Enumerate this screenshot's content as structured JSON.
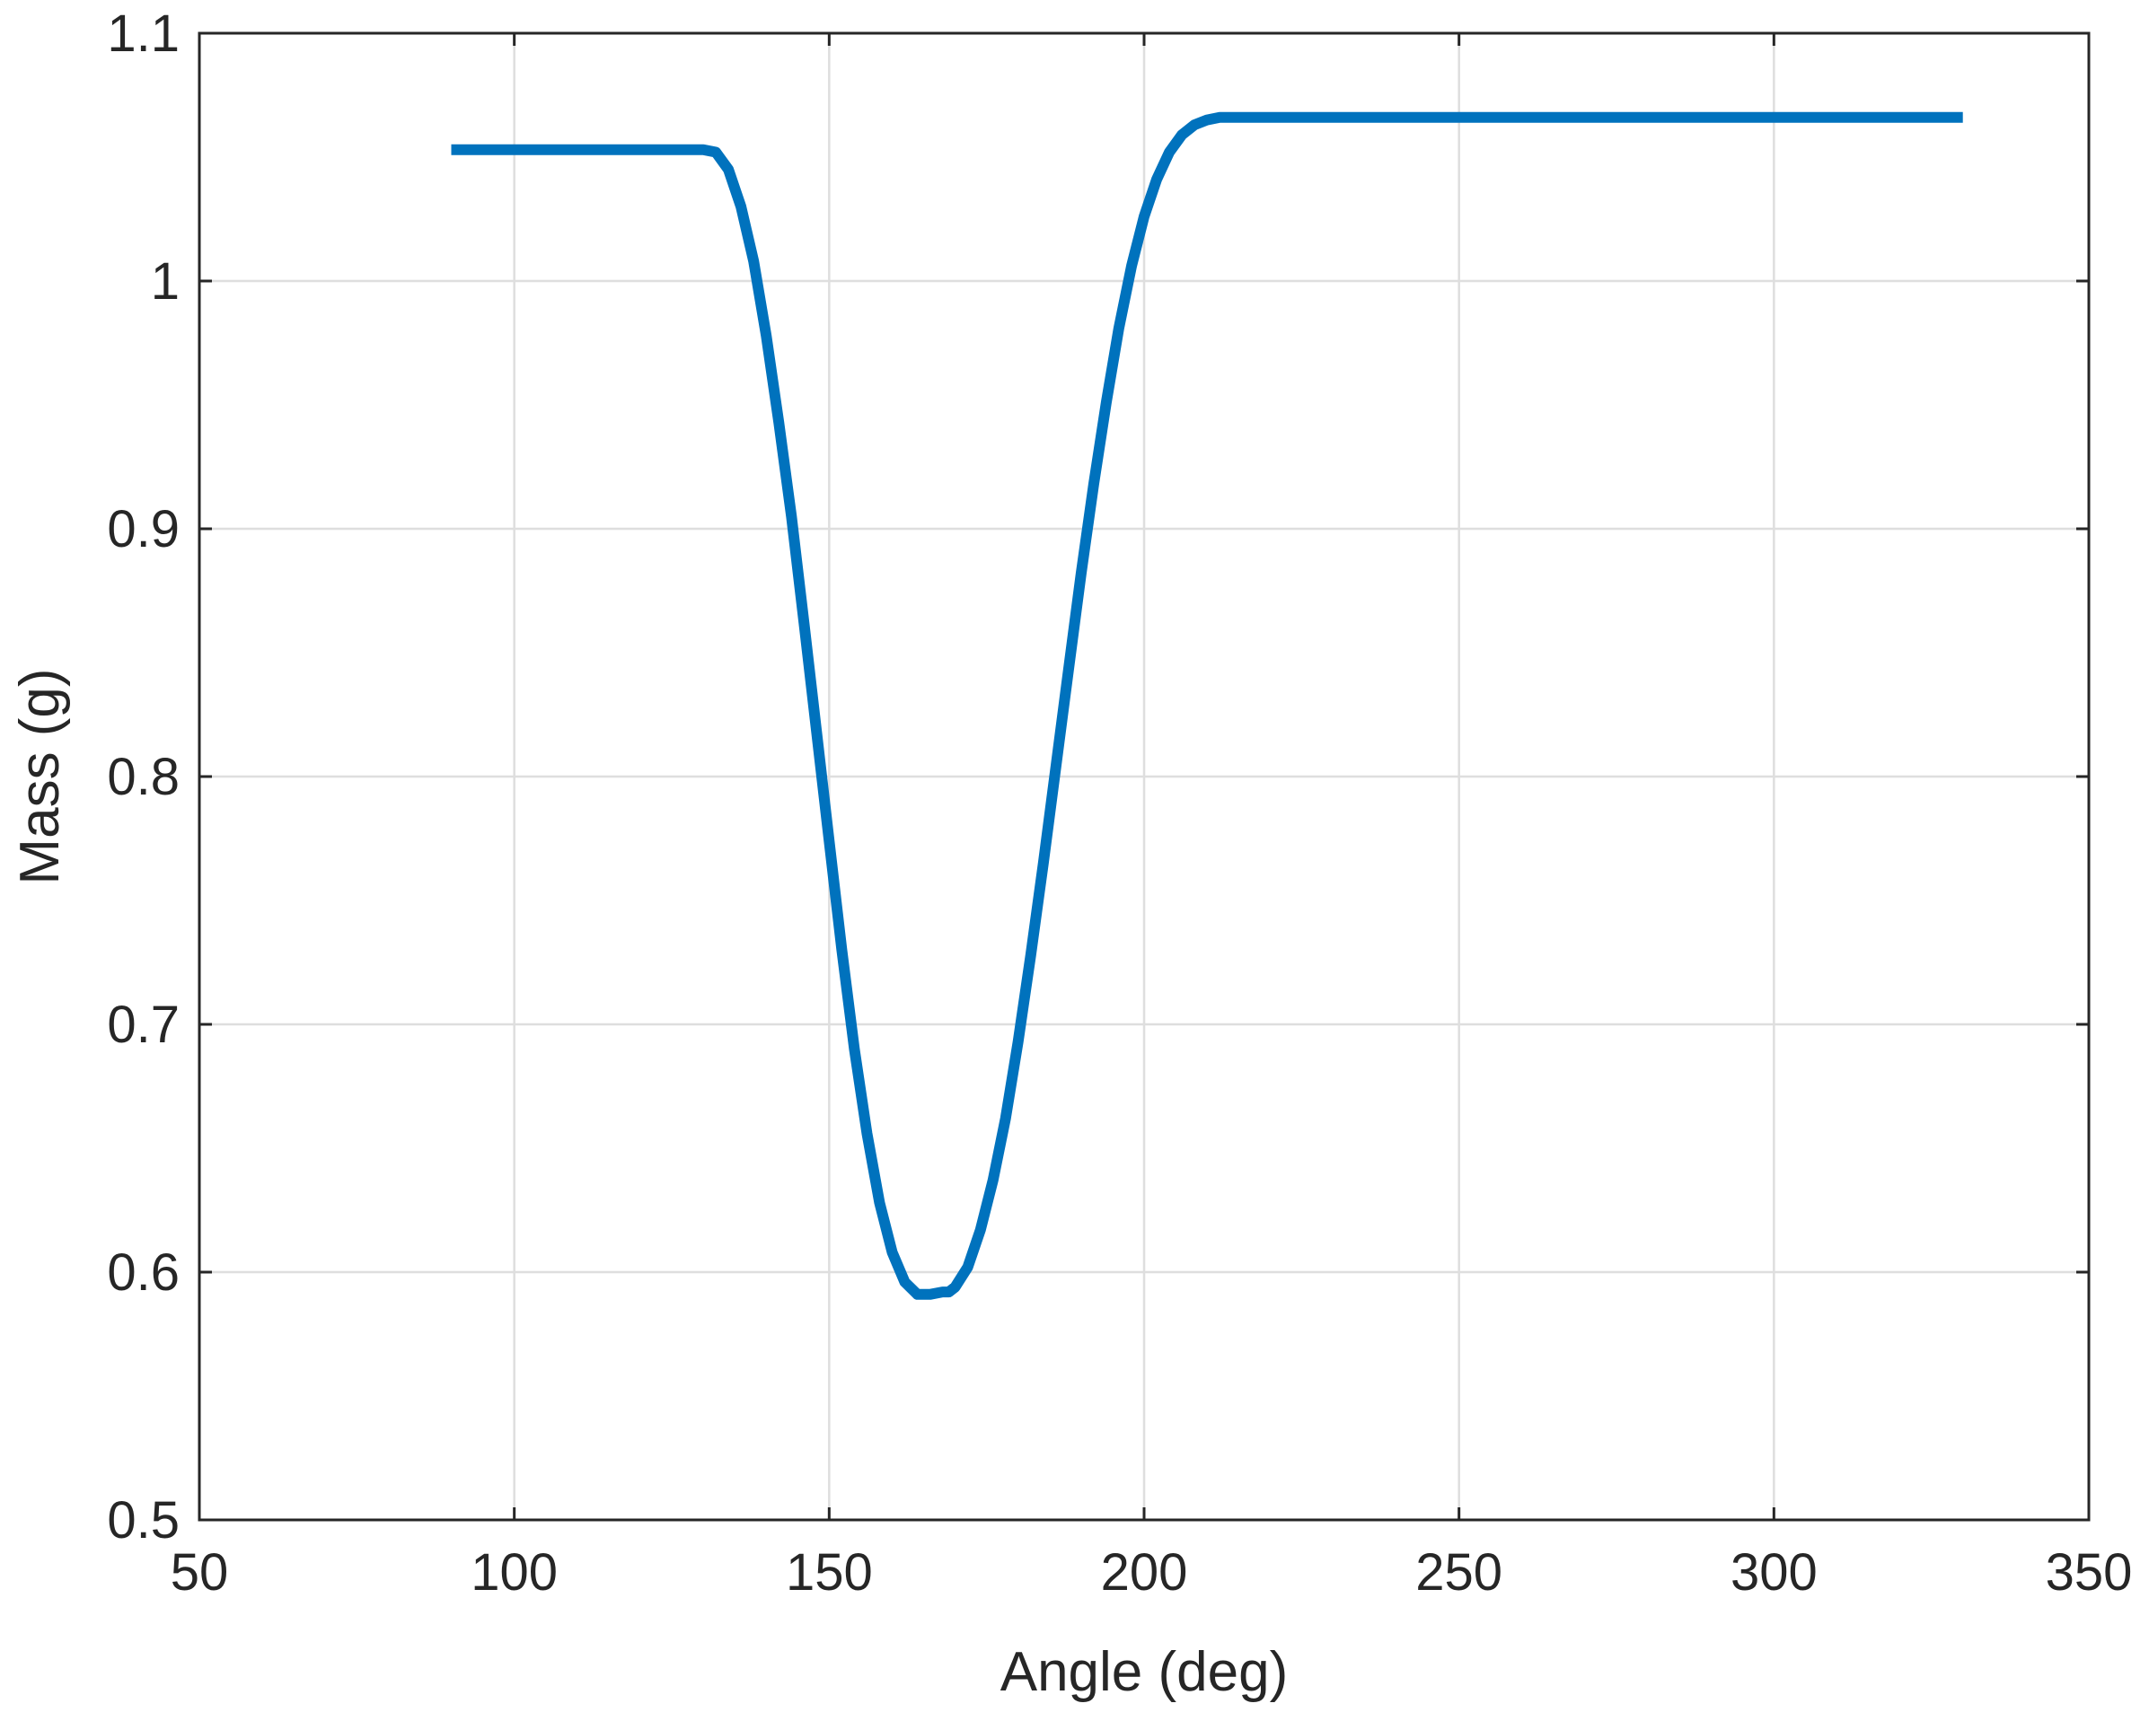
{
  "chart_data": {
    "type": "line",
    "title": "",
    "xlabel": "Angle (deg)",
    "ylabel": "Mass (g)",
    "xlim": [
      50,
      350
    ],
    "ylim": [
      0.5,
      1.1
    ],
    "xticks": [
      50,
      100,
      150,
      200,
      250,
      300,
      350
    ],
    "yticks": [
      0.5,
      0.6,
      0.7,
      0.8,
      0.9,
      1.0,
      1.1
    ],
    "xtick_labels": [
      "50",
      "100",
      "150",
      "200",
      "250",
      "300",
      "350"
    ],
    "ytick_labels": [
      "0.5",
      "0.6",
      "0.7",
      "0.8",
      "0.9",
      "1",
      "1.1"
    ],
    "grid": true,
    "series": [
      {
        "color": "#0072bd",
        "x": [
          90,
          100,
          110,
          120,
          130,
          132,
          134,
          136,
          138,
          140,
          142,
          144,
          146,
          148,
          150,
          152,
          154,
          156,
          158,
          160,
          162,
          164,
          166,
          168,
          169,
          170,
          172,
          174,
          176,
          178,
          180,
          182,
          184,
          186,
          188,
          190,
          192,
          194,
          196,
          198,
          200,
          202,
          204,
          206,
          208,
          210,
          212,
          214,
          216,
          218,
          220,
          222,
          225,
          250,
          275,
          300,
          330
        ],
        "y": [
          1.053,
          1.053,
          1.053,
          1.053,
          1.053,
          1.052,
          1.045,
          1.03,
          1.008,
          0.978,
          0.943,
          0.905,
          0.862,
          0.818,
          0.774,
          0.73,
          0.69,
          0.656,
          0.628,
          0.608,
          0.596,
          0.591,
          0.591,
          0.592,
          0.592,
          0.594,
          0.602,
          0.617,
          0.637,
          0.662,
          0.693,
          0.728,
          0.765,
          0.804,
          0.843,
          0.882,
          0.918,
          0.951,
          0.981,
          1.006,
          1.026,
          1.041,
          1.052,
          1.059,
          1.063,
          1.065,
          1.066,
          1.066,
          1.066,
          1.066,
          1.066,
          1.066,
          1.066,
          1.066,
          1.066,
          1.066,
          1.066
        ]
      }
    ]
  }
}
